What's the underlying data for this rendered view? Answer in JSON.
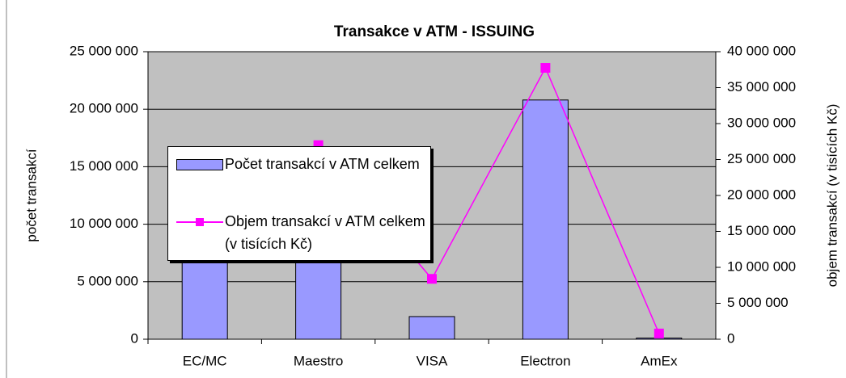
{
  "chart_data": {
    "type": "bar",
    "title": "Transakce v ATM - ISSUING",
    "categories": [
      "EC/MC",
      "Maestro",
      "VISA",
      "Electron",
      "AmEx"
    ],
    "ylabel": "počet transakcí",
    "y2label": "objem transakcí (v tisících Kč)",
    "series": [
      {
        "name": "Počet transakcí v ATM celkem",
        "color": "#9999ff",
        "type": "bar",
        "values": [
          8000000,
          9000000,
          1970000,
          20800000,
          100000
        ]
      },
      {
        "name": "Objem transakcí v ATM celkem (v tisících Kč)",
        "color": "#ff00ff",
        "type": "line",
        "axis": "y2",
        "values": [
          22000000,
          27000000,
          8400000,
          37750000,
          800000
        ]
      }
    ],
    "ylim": [
      0,
      25000000
    ],
    "yticks": [
      {
        "value": 0,
        "label": "0"
      },
      {
        "value": 5000000,
        "label": "5 000 000"
      },
      {
        "value": 10000000,
        "label": "10 000 000"
      },
      {
        "value": 15000000,
        "label": "15 000 000"
      },
      {
        "value": 20000000,
        "label": "20 000 000"
      },
      {
        "value": 25000000,
        "label": "25 000 000"
      }
    ],
    "y2lim": [
      0,
      40000000
    ],
    "y2ticks": [
      {
        "value": 0,
        "label": "0"
      },
      {
        "value": 5000000,
        "label": "5 000 000"
      },
      {
        "value": 10000000,
        "label": "10 000 000"
      },
      {
        "value": 15000000,
        "label": "15 000 000"
      },
      {
        "value": 20000000,
        "label": "20 000 000"
      },
      {
        "value": 25000000,
        "label": "25 000 000"
      },
      {
        "value": 30000000,
        "label": "30 000 000"
      },
      {
        "value": 35000000,
        "label": "35 000 000"
      },
      {
        "value": 40000000,
        "label": "40 000 000"
      }
    ],
    "grid": true,
    "legend": "left"
  }
}
